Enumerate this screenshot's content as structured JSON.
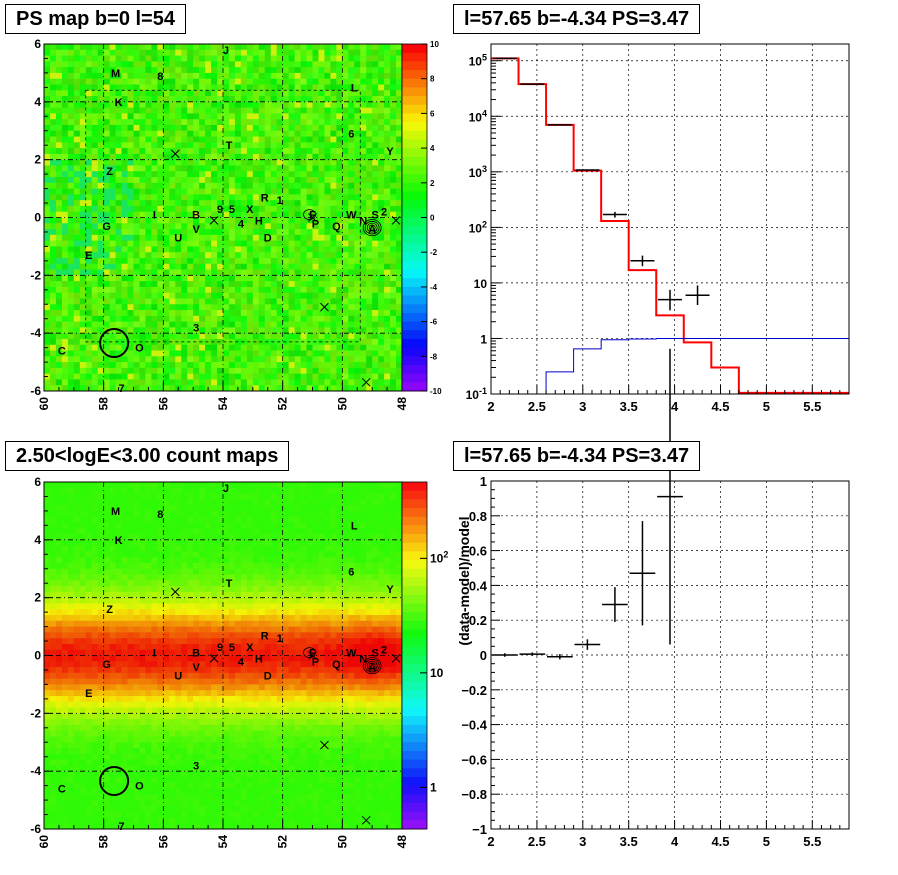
{
  "panels": {
    "ps_map": {
      "title": "PS map b=0 l=54"
    },
    "spectrum": {
      "title": "l=57.65 b=-4.34 PS=3.47"
    },
    "count_map": {
      "title": "2.50<logE<3.00 count maps"
    },
    "residual": {
      "title": "l=57.65 b=-4.34 PS=3.47"
    }
  },
  "chart_data": [
    {
      "type": "heatmap",
      "name": "PS map",
      "title": "PS map b=0 l=54",
      "xlim": [
        60,
        48
      ],
      "ylim": [
        -6,
        6
      ],
      "xticks": [
        "60",
        "58",
        "56",
        "54",
        "52",
        "50",
        "48"
      ],
      "yticks": [
        "-6",
        "-4",
        "-2",
        "0",
        "2",
        "4",
        "6"
      ],
      "colorbar": {
        "min": -10,
        "max": 10,
        "ticks": [
          "10",
          "8",
          "6",
          "4",
          "2",
          "0",
          "-2",
          "-4",
          "-6",
          "-8",
          "-10"
        ]
      },
      "grid": true,
      "source_labels": [
        {
          "t": "M",
          "l": 57.6,
          "b": 5.0
        },
        {
          "t": "8",
          "l": 56.1,
          "b": 4.9
        },
        {
          "t": "J",
          "l": 53.9,
          "b": 5.8
        },
        {
          "t": "K",
          "l": 57.5,
          "b": 4.0
        },
        {
          "t": "L",
          "l": 49.6,
          "b": 4.5
        },
        {
          "t": "6",
          "l": 49.7,
          "b": 2.9
        },
        {
          "t": "T",
          "l": 53.8,
          "b": 2.5
        },
        {
          "t": "Y",
          "l": 48.4,
          "b": 2.3
        },
        {
          "t": "Z",
          "l": 57.8,
          "b": 1.6
        },
        {
          "t": "R",
          "l": 52.6,
          "b": 0.7
        },
        {
          "t": "1",
          "l": 52.1,
          "b": 0.6
        },
        {
          "t": "9",
          "l": 54.1,
          "b": 0.3
        },
        {
          "t": "5",
          "l": 53.7,
          "b": 0.3
        },
        {
          "t": "X",
          "l": 53.1,
          "b": 0.3
        },
        {
          "t": "B",
          "l": 54.9,
          "b": 0.1
        },
        {
          "t": "I",
          "l": 56.3,
          "b": 0.1
        },
        {
          "t": "F",
          "l": 51.0,
          "b": 0.1
        },
        {
          "t": "W",
          "l": 49.7,
          "b": 0.1
        },
        {
          "t": "N",
          "l": 49.3,
          "b": -0.1
        },
        {
          "t": "S",
          "l": 48.9,
          "b": 0.1
        },
        {
          "t": "2",
          "l": 48.6,
          "b": 0.2
        },
        {
          "t": "H",
          "l": 52.8,
          "b": -0.1
        },
        {
          "t": "4",
          "l": 53.4,
          "b": -0.2
        },
        {
          "t": "P",
          "l": 50.9,
          "b": -0.2
        },
        {
          "t": "Q",
          "l": 50.2,
          "b": -0.3
        },
        {
          "t": "A",
          "l": 49.0,
          "b": -0.4
        },
        {
          "t": "G",
          "l": 57.9,
          "b": -0.3
        },
        {
          "t": "V",
          "l": 54.9,
          "b": -0.4
        },
        {
          "t": "U",
          "l": 55.5,
          "b": -0.7
        },
        {
          "t": "D",
          "l": 52.5,
          "b": -0.7
        },
        {
          "t": "E",
          "l": 58.5,
          "b": -1.3
        },
        {
          "t": "3",
          "l": 54.9,
          "b": -3.8
        },
        {
          "t": "C",
          "l": 59.4,
          "b": -4.6
        },
        {
          "t": "O",
          "l": 56.8,
          "b": -4.5
        },
        {
          "t": "7",
          "l": 57.4,
          "b": -5.9
        }
      ],
      "crosses": [
        [
          55.6,
          2.2
        ],
        [
          54.3,
          -0.1
        ],
        [
          50.6,
          -3.1
        ],
        [
          49.2,
          -5.7
        ],
        [
          51.0,
          0.0
        ],
        [
          48.2,
          -0.1
        ]
      ],
      "circle": {
        "l": 57.65,
        "b": -4.34
      }
    },
    {
      "type": "line",
      "name": "spectrum",
      "title": "l=57.65 b=-4.34 PS=3.47",
      "xlim": [
        2,
        5.9
      ],
      "ylim": [
        0.1,
        200000
      ],
      "yscale": "log",
      "xticks": [
        "2",
        "2.5",
        "3",
        "3.5",
        "4",
        "4.5",
        "5",
        "5.5"
      ],
      "yticks": [
        "10-1",
        "1",
        "10",
        "102",
        "103",
        "104",
        "105"
      ],
      "grid": true,
      "series": [
        {
          "color": "#ff0000",
          "bin_edges": [
            2.0,
            2.3,
            2.6,
            2.9,
            3.2,
            3.5,
            3.8,
            4.1,
            4.4,
            4.7,
            5.0,
            5.3,
            5.6,
            5.9
          ],
          "values": [
            110000,
            38000,
            7000,
            1050,
            130,
            17,
            2.6,
            0.85,
            0.3,
            0.105,
            0.105,
            0.105,
            0.105
          ]
        },
        {
          "color": "#0000cc",
          "bin_edges": [
            2.0,
            2.3,
            2.6,
            2.9,
            3.2,
            3.5,
            3.8,
            4.1,
            4.4,
            4.7,
            5.0,
            5.3,
            5.6,
            5.9
          ],
          "values": [
            0.03,
            0.06,
            0.25,
            0.65,
            0.95,
            0.98,
            1.0,
            1.0,
            1.0,
            1.0,
            1.0,
            1.0,
            1.0
          ]
        },
        {
          "color": "#000000",
          "points": [
            {
              "x": 2.15,
              "y": 110000
            },
            {
              "x": 2.45,
              "y": 38000
            },
            {
              "x": 2.75,
              "y": 7000
            },
            {
              "x": 3.05,
              "y": 1080
            },
            {
              "x": 3.35,
              "y": 170,
              "ylo": 150,
              "yhi": 190
            },
            {
              "x": 3.65,
              "y": 25,
              "ylo": 20,
              "yhi": 31
            },
            {
              "x": 3.95,
              "y": 5,
              "ylo": 3.2,
              "yhi": 7.5
            },
            {
              "x": 4.25,
              "y": 6,
              "ylo": 4,
              "yhi": 9
            }
          ]
        }
      ]
    },
    {
      "type": "heatmap",
      "name": "count map",
      "title": "2.50<logE<3.00 count maps",
      "xlim": [
        60,
        48
      ],
      "ylim": [
        -6,
        6
      ],
      "xticks": [
        "60",
        "58",
        "56",
        "54",
        "52",
        "50",
        "48"
      ],
      "yticks": [
        "-6",
        "-4",
        "-2",
        "0",
        "2",
        "4",
        "6"
      ],
      "colorbar": {
        "scale": "log",
        "ticks": [
          "102",
          "10",
          "1"
        ]
      },
      "grid": true
    },
    {
      "type": "scatter",
      "name": "residual",
      "title": "l=57.65 b=-4.34 PS=3.47",
      "xlim": [
        2,
        5.9
      ],
      "ylim": [
        -1,
        1
      ],
      "ylabel": "(data-model)/model",
      "xticks": [
        "2",
        "2.5",
        "3",
        "3.5",
        "4",
        "4.5",
        "5",
        "5.5"
      ],
      "yticks": [
        "-1",
        "-0.8",
        "-0.6",
        "-0.4",
        "-0.2",
        "0",
        "0.2",
        "0.4",
        "0.6",
        "0.8",
        "1"
      ],
      "grid": true,
      "points": [
        {
          "x": 2.15,
          "y": 0.0,
          "err": 0.01
        },
        {
          "x": 2.45,
          "y": 0.005,
          "err": 0.01
        },
        {
          "x": 2.75,
          "y": -0.01,
          "err": 0.015
        },
        {
          "x": 3.05,
          "y": 0.06,
          "err": 0.03
        },
        {
          "x": 3.35,
          "y": 0.29,
          "err": 0.1
        },
        {
          "x": 3.65,
          "y": 0.47,
          "err": 0.3
        },
        {
          "x": 3.95,
          "y": 0.91,
          "err": 0.85
        }
      ]
    }
  ]
}
